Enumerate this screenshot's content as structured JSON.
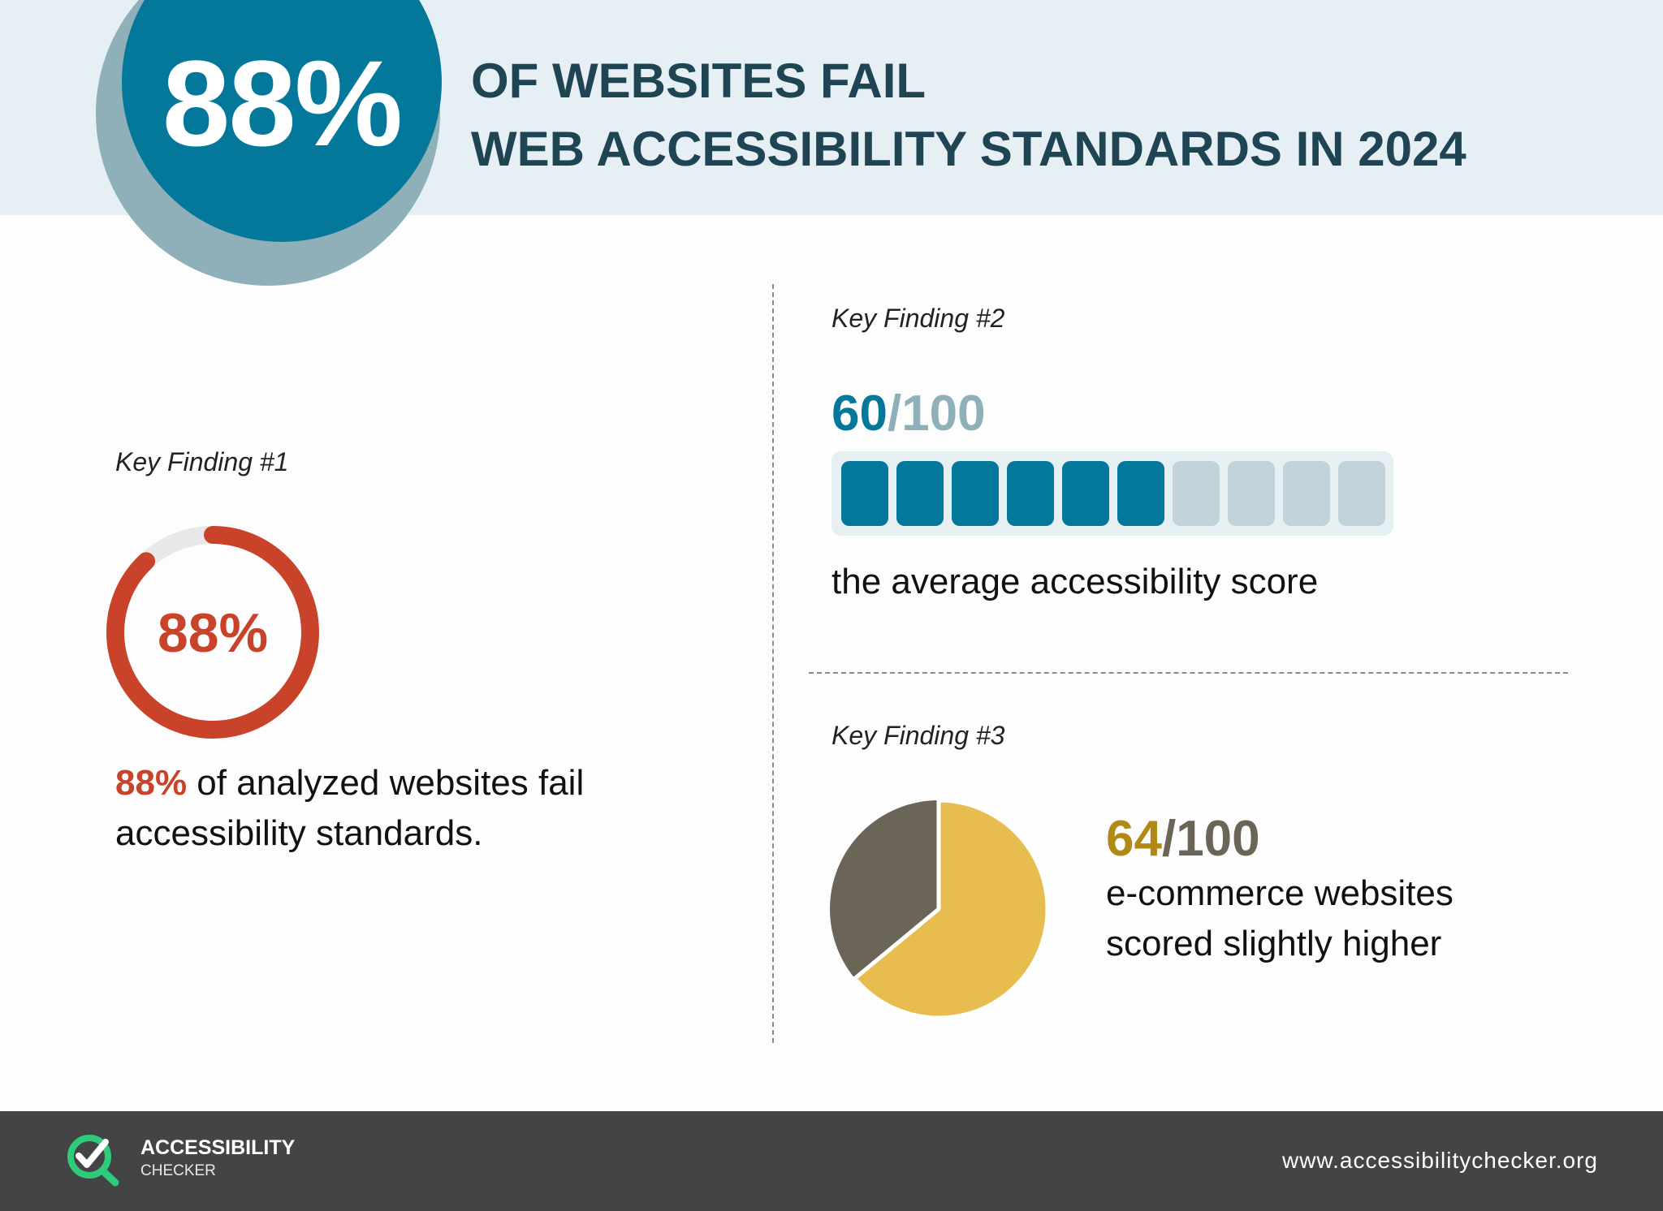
{
  "header": {
    "big_stat": "88%",
    "headline_line1": "OF WEBSITES FAIL",
    "headline_line2": "WEB ACCESSIBILITY STANDARDS IN 2024"
  },
  "finding1": {
    "label": "Key Finding #1",
    "donut_value": "88%",
    "donut_fraction": 0.88,
    "text_highlight": "88%",
    "text_line1_rest": " of analyzed websites fail",
    "text_line2": "accessibility standards."
  },
  "finding2": {
    "label": "Key Finding #2",
    "score_num": "60",
    "score_den": "/100",
    "filled_segments": 6,
    "total_segments": 10,
    "text": "the average accessibility score"
  },
  "finding3": {
    "label": "Key Finding #3",
    "score_num": "64",
    "score_den": "/100",
    "pie_fraction": 0.64,
    "text_line1": "e-commerce websites",
    "text_line2": "scored slightly higher"
  },
  "footer": {
    "logo_title": "ACCESSIBILITY",
    "logo_sub": "CHECKER",
    "url": "www.accessibilitychecker.org"
  },
  "colors": {
    "teal": "#04789a",
    "teal_light": "#8fb0b9",
    "red": "#c9432a",
    "gold": "#e6bd4e",
    "gold_dark": "#b08a14",
    "slate": "#6b6558",
    "footer_bg": "#434445",
    "logo_green": "#2ecb7a"
  }
}
